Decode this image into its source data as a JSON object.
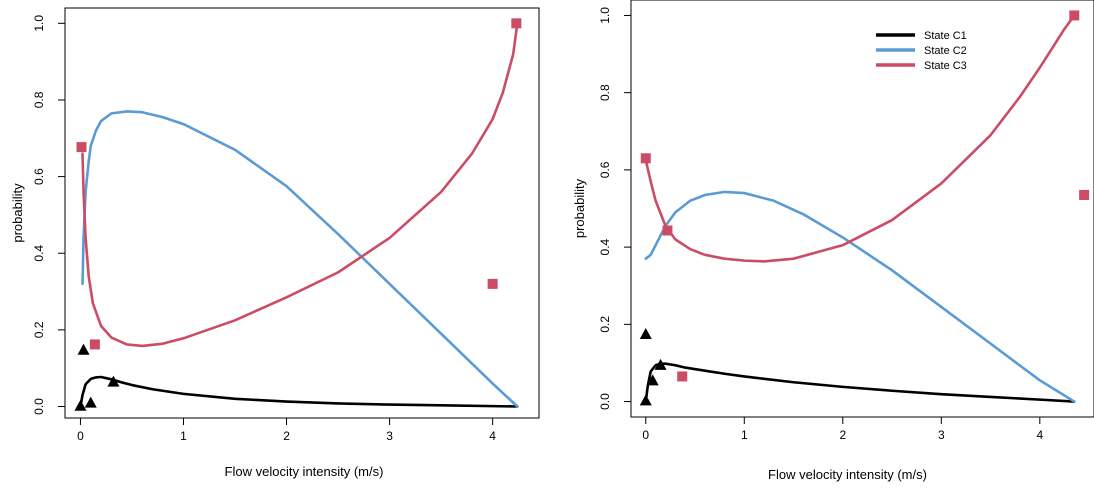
{
  "chart_data": [
    {
      "type": "line",
      "title": "",
      "xlabel": "Flow velocity intensity (m/s)",
      "ylabel": "probability",
      "xlim": [
        -0.15,
        4.45
      ],
      "ylim": [
        -0.03,
        1.04
      ],
      "xticks": [
        "0",
        "1",
        "2",
        "3",
        "4"
      ],
      "yticks": [
        "0.0",
        "0.2",
        "0.4",
        "0.6",
        "0.8",
        "1.0"
      ],
      "legend": null,
      "series": [
        {
          "color": "#000000",
          "x": [
            0,
            0.02,
            0.05,
            0.1,
            0.15,
            0.2,
            0.3,
            0.4,
            0.5,
            0.7,
            1.0,
            1.5,
            2.0,
            2.5,
            3.0,
            3.5,
            4.0,
            4.24
          ],
          "y": [
            0,
            0.03,
            0.058,
            0.072,
            0.076,
            0.077,
            0.071,
            0.063,
            0.056,
            0.045,
            0.033,
            0.02,
            0.013,
            0.008,
            0.005,
            0.003,
            0.001,
            0.0
          ],
          "markers": {
            "shape": "triangle",
            "x": [
              0.0,
              0.1,
              0.32,
              0.03
            ],
            "y": [
              0.002,
              0.01,
              0.065,
              0.148
            ]
          }
        },
        {
          "color": "#5b9bd5",
          "x": [
            0.02,
            0.03,
            0.05,
            0.08,
            0.1,
            0.15,
            0.2,
            0.3,
            0.45,
            0.6,
            0.8,
            1.0,
            1.5,
            2.0,
            2.5,
            3.0,
            3.5,
            4.0,
            4.24
          ],
          "y": [
            0.32,
            0.44,
            0.56,
            0.64,
            0.68,
            0.72,
            0.745,
            0.765,
            0.77,
            0.768,
            0.755,
            0.737,
            0.67,
            0.575,
            0.45,
            0.32,
            0.19,
            0.06,
            0.0
          ],
          "markers": null
        },
        {
          "color": "#cc4c66",
          "x": [
            0.02,
            0.03,
            0.05,
            0.08,
            0.12,
            0.2,
            0.3,
            0.45,
            0.6,
            0.8,
            1.0,
            1.5,
            2.0,
            2.5,
            3.0,
            3.5,
            3.8,
            4.0,
            4.1,
            4.2,
            4.24
          ],
          "y": [
            0.66,
            0.56,
            0.44,
            0.34,
            0.27,
            0.21,
            0.18,
            0.162,
            0.158,
            0.164,
            0.178,
            0.225,
            0.285,
            0.35,
            0.44,
            0.56,
            0.66,
            0.75,
            0.82,
            0.92,
            1.0
          ],
          "markers": {
            "shape": "square",
            "x": [
              0.01,
              0.14,
              4.0,
              4.23
            ],
            "y": [
              0.677,
              0.162,
              0.32,
              1.0
            ]
          }
        }
      ]
    },
    {
      "type": "line",
      "title": "",
      "xlabel": "Flow velocity intensity (m/s)",
      "ylabel": "probability",
      "xlim": [
        -0.15,
        4.55
      ],
      "ylim": [
        -0.04,
        1.04
      ],
      "xticks": [
        "0",
        "1",
        "2",
        "3",
        "4"
      ],
      "yticks": [
        "0.0",
        "0.2",
        "0.4",
        "0.6",
        "0.8",
        "1.0"
      ],
      "legend": {
        "position": "top-right",
        "labels": [
          "State C1",
          "State C2",
          "State C3"
        ]
      },
      "series": [
        {
          "name": "State C1",
          "color": "#000000",
          "x": [
            0,
            0.02,
            0.05,
            0.1,
            0.15,
            0.2,
            0.3,
            0.4,
            0.6,
            0.8,
            1.0,
            1.5,
            2.0,
            2.5,
            3.0,
            3.5,
            4.0,
            4.35
          ],
          "y": [
            0,
            0.04,
            0.078,
            0.094,
            0.098,
            0.098,
            0.094,
            0.088,
            0.08,
            0.072,
            0.065,
            0.05,
            0.038,
            0.028,
            0.019,
            0.012,
            0.005,
            0.0
          ],
          "markers": {
            "shape": "triangle",
            "x": [
              0.0,
              0.07,
              0.15,
              0.0
            ],
            "y": [
              0.003,
              0.055,
              0.095,
              0.175
            ]
          }
        },
        {
          "name": "State C2",
          "color": "#5b9bd5",
          "x": [
            0.0,
            0.05,
            0.1,
            0.2,
            0.3,
            0.45,
            0.6,
            0.8,
            1.0,
            1.3,
            1.6,
            2.0,
            2.5,
            3.0,
            3.5,
            4.0,
            4.35
          ],
          "y": [
            0.37,
            0.38,
            0.405,
            0.455,
            0.49,
            0.52,
            0.535,
            0.543,
            0.54,
            0.52,
            0.485,
            0.425,
            0.34,
            0.245,
            0.15,
            0.055,
            0.0
          ],
          "markers": null
        },
        {
          "name": "State C3",
          "color": "#cc4c66",
          "x": [
            0.0,
            0.05,
            0.1,
            0.2,
            0.3,
            0.45,
            0.6,
            0.8,
            1.0,
            1.2,
            1.5,
            2.0,
            2.5,
            3.0,
            3.5,
            3.8,
            4.0,
            4.15,
            4.25,
            4.35
          ],
          "y": [
            0.625,
            0.57,
            0.52,
            0.455,
            0.42,
            0.395,
            0.38,
            0.37,
            0.365,
            0.363,
            0.37,
            0.405,
            0.47,
            0.565,
            0.69,
            0.79,
            0.865,
            0.925,
            0.965,
            1.0
          ],
          "markers": {
            "shape": "square",
            "x": [
              0.0,
              0.22,
              0.37,
              4.35,
              4.45
            ],
            "y": [
              0.63,
              0.443,
              0.065,
              1.0,
              0.535
            ]
          }
        }
      ]
    }
  ]
}
